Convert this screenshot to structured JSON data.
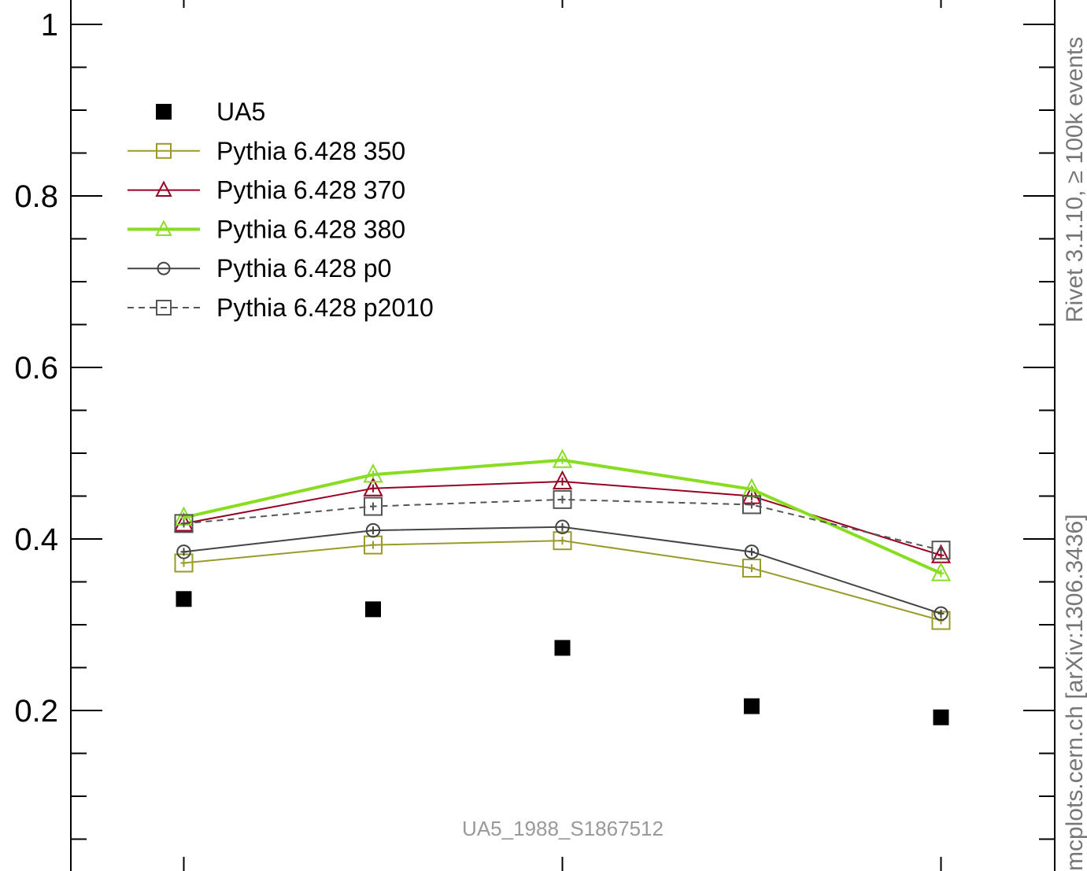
{
  "chart_data": {
    "type": "line",
    "x": [
      1,
      2,
      3,
      4,
      5
    ],
    "ylim": [
      0.0,
      1.0
    ],
    "yticks": [
      0.2,
      0.4,
      0.6,
      0.8,
      1.0
    ],
    "ytick_labels": [
      "0.2",
      "0.4",
      "0.6",
      "0.8",
      "1"
    ],
    "series": [
      {
        "name": "UA5",
        "style": "data",
        "color": "#000000",
        "values": [
          0.33,
          0.318,
          0.273,
          0.205,
          0.192
        ]
      },
      {
        "name": "Pythia 6.428 350",
        "style": "line",
        "marker": "square",
        "color": "#9a9a2a",
        "values": [
          0.372,
          0.393,
          0.398,
          0.366,
          0.305
        ]
      },
      {
        "name": "Pythia 6.428 370",
        "style": "line",
        "marker": "triangle",
        "color": "#990022",
        "values": [
          0.418,
          0.459,
          0.467,
          0.45,
          0.381
        ]
      },
      {
        "name": "Pythia 6.428 380",
        "style": "line-thick",
        "marker": "triangle",
        "color": "#88dd22",
        "values": [
          0.425,
          0.475,
          0.492,
          0.458,
          0.36
        ]
      },
      {
        "name": "Pythia 6.428 p0",
        "style": "line",
        "marker": "circle",
        "color": "#444444",
        "values": [
          0.385,
          0.41,
          0.414,
          0.385,
          0.313
        ]
      },
      {
        "name": "Pythia 6.428 p2010",
        "style": "dashed",
        "marker": "square",
        "color": "#555555",
        "values": [
          0.418,
          0.438,
          0.446,
          0.44,
          0.387
        ]
      }
    ],
    "legend_position": "top-left",
    "annotation": "UA5_1988_S1867512",
    "side_label_top": "Rivet 3.1.10, ≥ 100k events",
    "side_label_bottom": "mcplots.cern.ch [arXiv:1306.3436]"
  }
}
